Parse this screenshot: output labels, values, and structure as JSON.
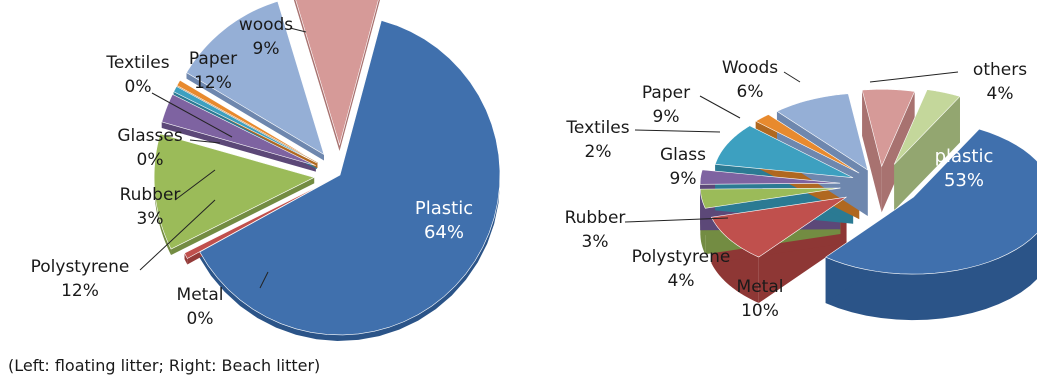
{
  "caption": "(Left: floating litter; Right: Beach litter)",
  "chart_data": [
    {
      "type": "pie",
      "title": "",
      "slices": [
        {
          "label": "Plastic",
          "value": 64,
          "text": "64%",
          "color": "#4070AD",
          "dark": "#2B5488"
        },
        {
          "label": "Metal",
          "value": 0,
          "text": "0%",
          "color": "#C0504D",
          "dark": "#943B39"
        },
        {
          "label": "Polystyrene",
          "value": 12,
          "text": "12%",
          "color": "#9BBB59",
          "dark": "#738C42"
        },
        {
          "label": "Rubber",
          "value": 3,
          "text": "3%",
          "color": "#7E63A1",
          "dark": "#5C4878"
        },
        {
          "label": "Glasses",
          "value": 0,
          "text": "0%",
          "color": "#3DA0C0",
          "dark": "#2B7A93"
        },
        {
          "label": "Textiles",
          "value": 0,
          "text": "0%",
          "color": "#E88A2E",
          "dark": "#B06820"
        },
        {
          "label": "Paper",
          "value": 12,
          "text": "12%",
          "color": "#95AFD6",
          "dark": "#6E87AE"
        },
        {
          "label": "woods",
          "value": 9,
          "text": "9%",
          "color": "#D69A98",
          "dark": "#A87270"
        }
      ]
    },
    {
      "type": "pie",
      "title": "",
      "slices": [
        {
          "label": "plastic",
          "value": 53,
          "text": "53%",
          "color": "#4070AD",
          "dark": "#2B5488"
        },
        {
          "label": "Metal",
          "value": 10,
          "text": "10%",
          "color": "#C0504D",
          "dark": "#8E3735"
        },
        {
          "label": "Polystyrene",
          "value": 4,
          "text": "4%",
          "color": "#9BBB59",
          "dark": "#738C42"
        },
        {
          "label": "Rubber",
          "value": 3,
          "text": "3%",
          "color": "#7E63A1",
          "dark": "#5C4878"
        },
        {
          "label": "Glass",
          "value": 9,
          "text": "9%",
          "color": "#3DA0C0",
          "dark": "#2B7A93"
        },
        {
          "label": "Textiles",
          "value": 2,
          "text": "2%",
          "color": "#E88A2E",
          "dark": "#B06820"
        },
        {
          "label": "Paper",
          "value": 9,
          "text": "9%",
          "color": "#95AFD6",
          "dark": "#6E87AE"
        },
        {
          "label": "Woods",
          "value": 6,
          "text": "6%",
          "color": "#D69A98",
          "dark": "#A87270"
        },
        {
          "label": "others",
          "value": 4,
          "text": "4%",
          "color": "#C4D79B",
          "dark": "#93A670"
        }
      ]
    }
  ]
}
